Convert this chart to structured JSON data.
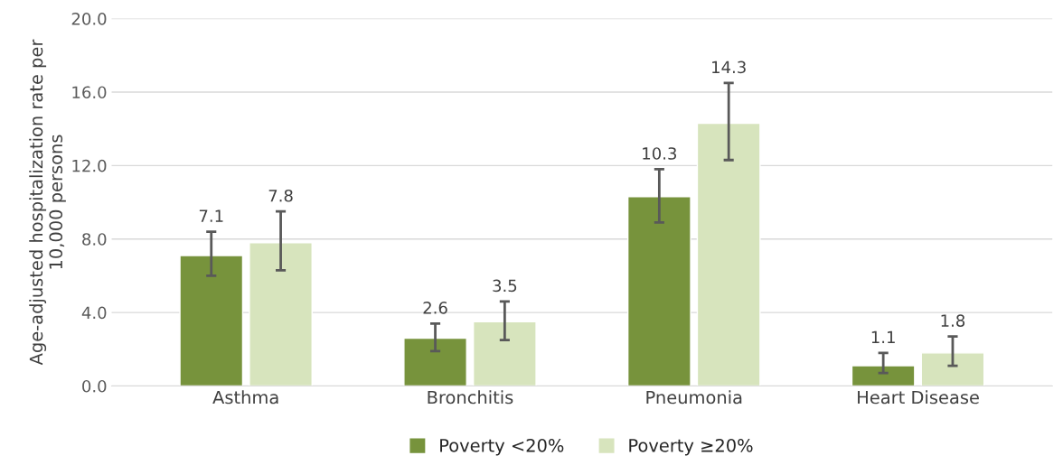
{
  "chart_data": {
    "type": "bar",
    "categories": [
      "Asthma",
      "Bronchitis",
      "Pneumonia",
      "Heart Disease"
    ],
    "ylabel": "Age-adjusted hospitalization rate per\n10,000 persons",
    "series": [
      {
        "name": "Poverty <20%",
        "color": "#77933c",
        "values": [
          7.1,
          2.6,
          10.3,
          1.1
        ],
        "errors": [
          [
            6.0,
            8.4
          ],
          [
            1.9,
            3.4
          ],
          [
            8.9,
            11.8
          ],
          [
            0.7,
            1.8
          ]
        ]
      },
      {
        "name": "Poverty ≥20%",
        "color": "#d7e4bd",
        "values": [
          7.8,
          3.5,
          14.3,
          1.8
        ],
        "errors": [
          [
            6.3,
            9.5
          ],
          [
            2.5,
            4.6
          ],
          [
            12.3,
            16.5
          ],
          [
            1.1,
            2.7
          ]
        ]
      }
    ],
    "ylim": [
      0,
      20
    ],
    "yticks": [
      {
        "value": 0,
        "label": "0.0"
      },
      {
        "value": 4,
        "label": "4.0"
      },
      {
        "value": 8,
        "label": "8.0"
      },
      {
        "value": 12,
        "label": "12.0"
      },
      {
        "value": 16,
        "label": "16.0"
      },
      {
        "value": 20,
        "label": "20.0"
      }
    ],
    "grid": "y",
    "legend": "bottom",
    "data_labels": true
  }
}
